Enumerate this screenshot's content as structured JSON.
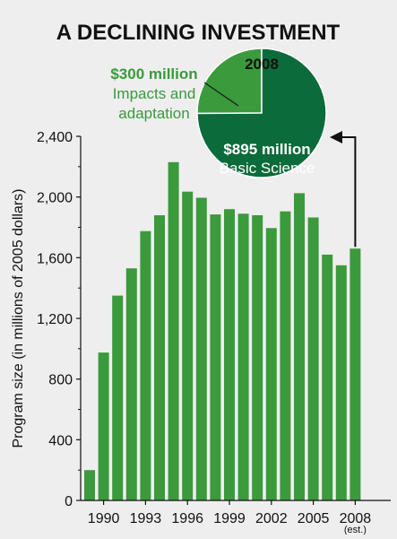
{
  "chart_data": {
    "type": "bar",
    "title": "A DECLINING INVESTMENT",
    "ylabel": "Program size (in millions of 2005 dollars)",
    "xlabel": "",
    "ylim": [
      0,
      2400
    ],
    "yticks": [
      0,
      400,
      800,
      1200,
      1600,
      2000,
      2400
    ],
    "x": [
      1989,
      1990,
      1991,
      1992,
      1993,
      1994,
      1995,
      1996,
      1997,
      1998,
      1999,
      2000,
      2001,
      2002,
      2003,
      2004,
      2005,
      2006,
      2007,
      2008
    ],
    "xtick_labels": [
      {
        "year": 1990,
        "label": "1990"
      },
      {
        "year": 1993,
        "label": "1993"
      },
      {
        "year": 1996,
        "label": "1996"
      },
      {
        "year": 1999,
        "label": "1999"
      },
      {
        "year": 2002,
        "label": "2002"
      },
      {
        "year": 2005,
        "label": "2005"
      },
      {
        "year": 2008,
        "label": "2008",
        "note": "(est.)"
      }
    ],
    "values": [
      200,
      975,
      1350,
      1530,
      1775,
      1880,
      2230,
      2035,
      1995,
      1885,
      1920,
      1890,
      1880,
      1795,
      1905,
      2025,
      1865,
      1620,
      1550,
      1660
    ],
    "grid": false,
    "color": "#3a9a3c",
    "inset_pie": {
      "title": "2008",
      "slices": [
        {
          "value": 300,
          "value_label": "$300 million",
          "label": "Impacts and adaptation",
          "label_lines": [
            "Impacts and",
            "adaptation"
          ],
          "color": "#3a9a3c"
        },
        {
          "value": 895,
          "value_label": "$895 million",
          "label": "Basic Science",
          "label_lines": [
            "Basic Science"
          ],
          "color": "#0b6b3a"
        }
      ]
    }
  }
}
